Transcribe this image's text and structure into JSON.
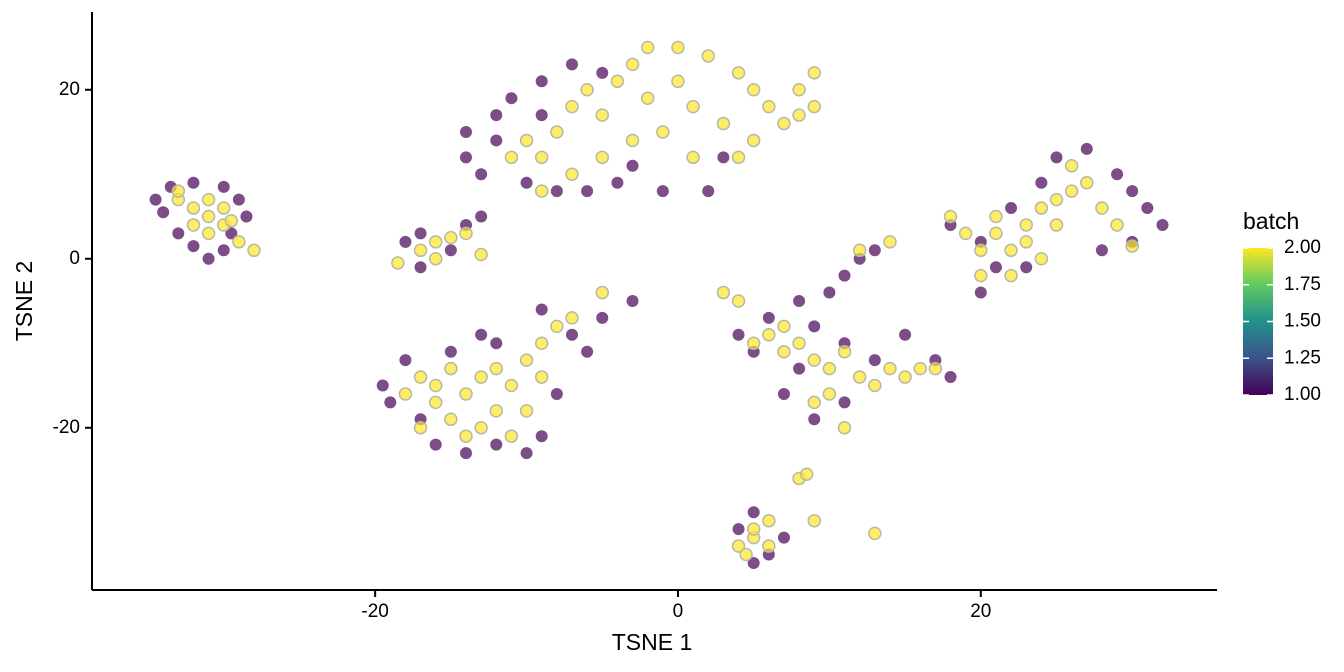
{
  "chart_data": {
    "type": "scatter",
    "x_label": "TSNE 1",
    "y_label": "TSNE 2",
    "xlim": [
      -38.7,
      35.6
    ],
    "ylim": [
      -39.2,
      29.2
    ],
    "xticks": [
      -20,
      0,
      20
    ],
    "yticks": [
      -20,
      0,
      20
    ],
    "colorbar": {
      "title": "batch",
      "colormap": "viridis",
      "lim": [
        1,
        2
      ],
      "ticks": [
        {
          "value": 1,
          "label": "1.00"
        },
        {
          "value": 1.25,
          "label": "1.25"
        },
        {
          "value": 1.5,
          "label": "1.50"
        },
        {
          "value": 1.75,
          "label": "1.75"
        },
        {
          "value": 2,
          "label": "2.00"
        }
      ]
    },
    "points": [
      [
        -34.5,
        7,
        1
      ],
      [
        -33.5,
        8.5,
        1
      ],
      [
        -32,
        9,
        1
      ],
      [
        -30,
        8.5,
        1
      ],
      [
        -29,
        7,
        1
      ],
      [
        -28.5,
        5,
        1
      ],
      [
        -33,
        3,
        1
      ],
      [
        -32,
        1.5,
        1
      ],
      [
        -31,
        0,
        1
      ],
      [
        -30,
        1,
        1
      ],
      [
        -34,
        5.5,
        1
      ],
      [
        -29.5,
        3,
        1
      ],
      [
        -18,
        2,
        1
      ],
      [
        -17,
        3,
        1
      ],
      [
        -14,
        4,
        1
      ],
      [
        -13,
        5,
        1
      ],
      [
        -15,
        1,
        1
      ],
      [
        -17,
        -1,
        1
      ],
      [
        -19.5,
        -15,
        1
      ],
      [
        -19,
        -17,
        1
      ],
      [
        -18,
        -12,
        1
      ],
      [
        -17,
        -19,
        1
      ],
      [
        -16,
        -22,
        1
      ],
      [
        -14,
        -23,
        1
      ],
      [
        -12,
        -22,
        1
      ],
      [
        -10,
        -23,
        1
      ],
      [
        -9,
        -21,
        1
      ],
      [
        -8,
        -16,
        1
      ],
      [
        -7,
        -9,
        1
      ],
      [
        -9,
        -6,
        1
      ],
      [
        -12,
        -10,
        1
      ],
      [
        -13,
        -9,
        1
      ],
      [
        -15,
        -11,
        1
      ],
      [
        -6,
        -11,
        1
      ],
      [
        -5,
        -7,
        1
      ],
      [
        -3,
        -5,
        1
      ],
      [
        -14,
        12,
        1
      ],
      [
        -13,
        10,
        1
      ],
      [
        -14,
        15,
        1
      ],
      [
        -12,
        17,
        1
      ],
      [
        -11,
        19,
        1
      ],
      [
        -9,
        21,
        1
      ],
      [
        -7,
        23,
        1
      ],
      [
        -5,
        22,
        1
      ],
      [
        -10,
        9,
        1
      ],
      [
        -8,
        8,
        1
      ],
      [
        -6,
        8,
        1
      ],
      [
        -4,
        9,
        1
      ],
      [
        -1,
        8,
        1
      ],
      [
        2,
        8,
        1
      ],
      [
        3,
        12,
        1
      ],
      [
        -12,
        14,
        1
      ],
      [
        -9,
        17,
        1
      ],
      [
        -3,
        11,
        1
      ],
      [
        4,
        -9,
        1
      ],
      [
        5,
        -11,
        1
      ],
      [
        6,
        -7,
        1
      ],
      [
        8,
        -5,
        1
      ],
      [
        10,
        -4,
        1
      ],
      [
        11,
        -2,
        1
      ],
      [
        12,
        0,
        1
      ],
      [
        13,
        1,
        1
      ],
      [
        9,
        -8,
        1
      ],
      [
        11,
        -10,
        1
      ],
      [
        13,
        -12,
        1
      ],
      [
        15,
        -9,
        1
      ],
      [
        17,
        -12,
        1
      ],
      [
        18,
        -14,
        1
      ],
      [
        7,
        -16,
        1
      ],
      [
        9,
        -19,
        1
      ],
      [
        11,
        -17,
        1
      ],
      [
        8,
        -13,
        1
      ],
      [
        18,
        4,
        1
      ],
      [
        20,
        2,
        1
      ],
      [
        21,
        -1,
        1
      ],
      [
        22,
        6,
        1
      ],
      [
        24,
        9,
        1
      ],
      [
        25,
        12,
        1
      ],
      [
        27,
        13,
        1
      ],
      [
        29,
        10,
        1
      ],
      [
        30,
        8,
        1
      ],
      [
        31,
        6,
        1
      ],
      [
        32,
        4,
        1
      ],
      [
        30,
        2,
        1
      ],
      [
        28,
        1,
        1
      ],
      [
        23,
        -1,
        1
      ],
      [
        20,
        -4,
        1
      ],
      [
        4,
        -32,
        1
      ],
      [
        5,
        -36,
        1
      ],
      [
        6,
        -35,
        1
      ],
      [
        7,
        -33,
        1
      ],
      [
        5,
        -30,
        1
      ],
      [
        -33,
        7,
        2
      ],
      [
        -32,
        6,
        2
      ],
      [
        -31,
        5,
        2
      ],
      [
        -30,
        4,
        2
      ],
      [
        -31,
        3,
        2
      ],
      [
        -32,
        4,
        2
      ],
      [
        -30,
        6,
        2
      ],
      [
        -29,
        2,
        2
      ],
      [
        -28,
        1,
        2
      ],
      [
        -33,
        8,
        2
      ],
      [
        -31,
        7,
        2
      ],
      [
        -29.5,
        4.5,
        2
      ],
      [
        -17,
        1,
        2
      ],
      [
        -16,
        2,
        2
      ],
      [
        -15,
        2.5,
        2
      ],
      [
        -14,
        3,
        2
      ],
      [
        -16,
        0,
        2
      ],
      [
        -18.5,
        -0.5,
        2
      ],
      [
        -13,
        0.5,
        2
      ],
      [
        -18,
        -16,
        2
      ],
      [
        -17,
        -14,
        2
      ],
      [
        -16,
        -17,
        2
      ],
      [
        -15,
        -19,
        2
      ],
      [
        -14,
        -16,
        2
      ],
      [
        -13,
        -20,
        2
      ],
      [
        -12,
        -18,
        2
      ],
      [
        -11,
        -15,
        2
      ],
      [
        -10,
        -12,
        2
      ],
      [
        -9,
        -10,
        2
      ],
      [
        -8,
        -8,
        2
      ],
      [
        -11,
        -21,
        2
      ],
      [
        -10,
        -18,
        2
      ],
      [
        -13,
        -14,
        2
      ],
      [
        -15,
        -13,
        2
      ],
      [
        -17,
        -20,
        2
      ],
      [
        -12,
        -13,
        2
      ],
      [
        -9,
        -14,
        2
      ],
      [
        -7,
        -7,
        2
      ],
      [
        -5,
        -4,
        2
      ],
      [
        -14,
        -21,
        2
      ],
      [
        -16,
        -15,
        2
      ],
      [
        -11,
        12,
        2
      ],
      [
        -10,
        14,
        2
      ],
      [
        -9,
        12,
        2
      ],
      [
        -8,
        15,
        2
      ],
      [
        -7,
        18,
        2
      ],
      [
        -6,
        20,
        2
      ],
      [
        -5,
        17,
        2
      ],
      [
        -4,
        21,
        2
      ],
      [
        -3,
        23,
        2
      ],
      [
        -2,
        25,
        2
      ],
      [
        0,
        25,
        2
      ],
      [
        2,
        24,
        2
      ],
      [
        4,
        22,
        2
      ],
      [
        5,
        20,
        2
      ],
      [
        6,
        18,
        2
      ],
      [
        8,
        20,
        2
      ],
      [
        9,
        22,
        2
      ],
      [
        9,
        18,
        2
      ],
      [
        7,
        16,
        2
      ],
      [
        5,
        14,
        2
      ],
      [
        3,
        16,
        2
      ],
      [
        1,
        18,
        2
      ],
      [
        -1,
        15,
        2
      ],
      [
        -3,
        14,
        2
      ],
      [
        -2,
        19,
        2
      ],
      [
        0,
        21,
        2
      ],
      [
        1,
        12,
        2
      ],
      [
        -5,
        12,
        2
      ],
      [
        -7,
        10,
        2
      ],
      [
        -9,
        8,
        2
      ],
      [
        4,
        12,
        2
      ],
      [
        8,
        17,
        2
      ],
      [
        5,
        -10,
        2
      ],
      [
        6,
        -9,
        2
      ],
      [
        7,
        -11,
        2
      ],
      [
        8,
        -10,
        2
      ],
      [
        9,
        -12,
        2
      ],
      [
        10,
        -13,
        2
      ],
      [
        11,
        -11,
        2
      ],
      [
        12,
        -14,
        2
      ],
      [
        13,
        -15,
        2
      ],
      [
        14,
        -13,
        2
      ],
      [
        15,
        -14,
        2
      ],
      [
        16,
        -13,
        2
      ],
      [
        17,
        -13,
        2
      ],
      [
        10,
        -16,
        2
      ],
      [
        9,
        -17,
        2
      ],
      [
        11,
        -20,
        2
      ],
      [
        4,
        -5,
        2
      ],
      [
        3,
        -4,
        2
      ],
      [
        12,
        1,
        2
      ],
      [
        14,
        2,
        2
      ],
      [
        7,
        -8,
        2
      ],
      [
        19,
        3,
        2
      ],
      [
        20,
        1,
        2
      ],
      [
        21,
        3,
        2
      ],
      [
        22,
        1,
        2
      ],
      [
        23,
        2,
        2
      ],
      [
        23,
        4,
        2
      ],
      [
        24,
        6,
        2
      ],
      [
        25,
        7,
        2
      ],
      [
        26,
        8,
        2
      ],
      [
        27,
        9,
        2
      ],
      [
        26,
        11,
        2
      ],
      [
        25,
        4,
        2
      ],
      [
        22,
        -2,
        2
      ],
      [
        21,
        5,
        2
      ],
      [
        24,
        0,
        2
      ],
      [
        28,
        6,
        2
      ],
      [
        29,
        4,
        2
      ],
      [
        30,
        1.5,
        2
      ],
      [
        18,
        5,
        2
      ],
      [
        20,
        -2,
        2
      ],
      [
        4,
        -34,
        2
      ],
      [
        5,
        -33,
        2
      ],
      [
        6,
        -34,
        2
      ],
      [
        5,
        -32,
        2
      ],
      [
        6,
        -31,
        2
      ],
      [
        4.5,
        -35,
        2
      ],
      [
        8,
        -26,
        2
      ],
      [
        8.5,
        -25.5,
        2
      ],
      [
        9,
        -31,
        2
      ],
      [
        13,
        -32.5,
        2
      ]
    ]
  }
}
